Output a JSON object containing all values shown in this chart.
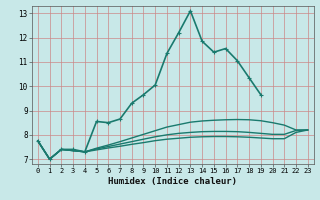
{
  "xlabel": "Humidex (Indice chaleur)",
  "ylabel": "",
  "xlim": [
    -0.5,
    23.5
  ],
  "ylim": [
    6.8,
    13.3
  ],
  "yticks": [
    7,
    8,
    9,
    10,
    11,
    12,
    13
  ],
  "xticks": [
    0,
    1,
    2,
    3,
    4,
    5,
    6,
    7,
    8,
    9,
    10,
    11,
    12,
    13,
    14,
    15,
    16,
    17,
    18,
    19,
    20,
    21,
    22,
    23
  ],
  "bg_color": "#c8e8e8",
  "grid_color_v": "#cc8888",
  "grid_color_h": "#cc8888",
  "line_color": "#1a7a6e",
  "lines": [
    {
      "x": [
        0,
        1,
        2,
        3,
        4,
        5,
        6,
        7,
        8,
        9,
        10,
        11,
        12,
        13,
        14,
        15,
        16,
        17,
        18,
        19,
        20,
        21,
        22,
        23
      ],
      "y": [
        7.75,
        7.0,
        7.4,
        7.4,
        7.3,
        8.55,
        8.5,
        8.65,
        9.3,
        9.65,
        10.05,
        11.35,
        12.2,
        13.1,
        11.85,
        11.4,
        11.55,
        11.05,
        10.35,
        9.65,
        null,
        null,
        null,
        null
      ],
      "has_markers": true,
      "linewidth": 1.2
    },
    {
      "x": [
        0,
        1,
        2,
        3,
        4,
        5,
        6,
        7,
        8,
        9,
        10,
        11,
        12,
        13,
        14,
        15,
        16,
        17,
        18,
        19,
        20,
        21,
        22,
        23
      ],
      "y": [
        7.75,
        7.0,
        7.4,
        7.35,
        7.3,
        7.45,
        7.58,
        7.72,
        7.87,
        8.02,
        8.17,
        8.32,
        8.42,
        8.52,
        8.57,
        8.6,
        8.62,
        8.63,
        8.62,
        8.58,
        8.5,
        8.4,
        8.2,
        8.2
      ],
      "has_markers": false,
      "linewidth": 1.0
    },
    {
      "x": [
        0,
        1,
        2,
        3,
        4,
        5,
        6,
        7,
        8,
        9,
        10,
        11,
        12,
        13,
        14,
        15,
        16,
        17,
        18,
        19,
        20,
        21,
        22,
        23
      ],
      "y": [
        7.75,
        7.0,
        7.4,
        7.35,
        7.3,
        7.42,
        7.52,
        7.62,
        7.72,
        7.82,
        7.92,
        8.0,
        8.06,
        8.1,
        8.13,
        8.14,
        8.14,
        8.13,
        8.1,
        8.06,
        8.02,
        8.02,
        8.18,
        8.2
      ],
      "has_markers": false,
      "linewidth": 1.0
    },
    {
      "x": [
        0,
        1,
        2,
        3,
        4,
        5,
        6,
        7,
        8,
        9,
        10,
        11,
        12,
        13,
        14,
        15,
        16,
        17,
        18,
        19,
        20,
        21,
        22,
        23
      ],
      "y": [
        7.75,
        7.0,
        7.4,
        7.35,
        7.3,
        7.38,
        7.46,
        7.53,
        7.61,
        7.68,
        7.76,
        7.82,
        7.86,
        7.9,
        7.92,
        7.93,
        7.93,
        7.92,
        7.9,
        7.87,
        7.84,
        7.84,
        8.1,
        8.2
      ],
      "has_markers": false,
      "linewidth": 1.0
    }
  ]
}
